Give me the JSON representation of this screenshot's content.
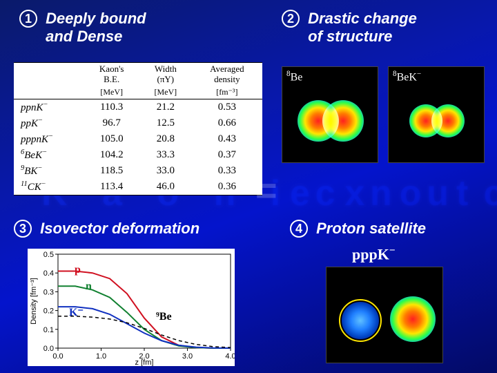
{
  "headings": {
    "h1": {
      "num": "1",
      "line1": "Deeply bound",
      "line2": "and Dense"
    },
    "h2": {
      "num": "2",
      "line1": "Drastic change",
      "line2": "of structure"
    },
    "h3": {
      "num": "3",
      "line1": "Isovector deformation"
    },
    "h4": {
      "num": "4",
      "line1": "Proton satellite"
    }
  },
  "table": {
    "headers": {
      "c1_l1": "Kaon's",
      "c1_l2": "B.E.",
      "c1_unit": "[MeV]",
      "c2_l1": "Width",
      "c2_l2": "(πY)",
      "c2_unit": "[MeV]",
      "c3_l1": "Averaged",
      "c3_l2": "density",
      "c3_unit": "[fm⁻³]"
    },
    "rows": [
      {
        "label": "ppnK⁻",
        "be": "110.3",
        "w": "21.2",
        "d": "0.53"
      },
      {
        "label": "ppK⁻",
        "be": "96.7",
        "w": "12.5",
        "d": "0.66"
      },
      {
        "label": "pppnK⁻",
        "be": "105.0",
        "w": "20.8",
        "d": "0.43"
      },
      {
        "label": "⁶BeK⁻",
        "be": "104.2",
        "w": "33.3",
        "d": "0.37"
      },
      {
        "label": "⁹BK⁻",
        "be": "118.5",
        "w": "33.0",
        "d": "0.33"
      },
      {
        "label": "¹¹CK⁻",
        "be": "113.4",
        "w": "46.0",
        "d": "0.36"
      }
    ]
  },
  "panels": {
    "be8": {
      "label_pre": "8",
      "label": "Be"
    },
    "be8k": {
      "label_pre": "8",
      "label": "BeK",
      "label_sup": "−"
    },
    "pppk": {
      "label": "pppK",
      "label_sup": "−"
    }
  },
  "chart": {
    "xlim": [
      0.0,
      4.0
    ],
    "xticks": [
      "0.0",
      "1.0",
      "2.0",
      "3.0",
      "4.0"
    ],
    "ylim": [
      0.0,
      0.5
    ],
    "yticks": [
      "0.0",
      "0.1",
      "0.2",
      "0.3",
      "0.4",
      "0.5"
    ],
    "xlabel": "z [fm]",
    "ylabel": "Density [fm⁻³]",
    "series": {
      "p": {
        "color": "#d01020",
        "label": "p",
        "pts": [
          [
            0.0,
            0.41
          ],
          [
            0.4,
            0.41
          ],
          [
            0.8,
            0.4
          ],
          [
            1.2,
            0.37
          ],
          [
            1.6,
            0.29
          ],
          [
            2.0,
            0.16
          ],
          [
            2.4,
            0.06
          ],
          [
            2.8,
            0.015
          ],
          [
            3.2,
            0.003
          ],
          [
            3.6,
            0.0
          ],
          [
            4.0,
            0.0
          ]
        ]
      },
      "n": {
        "color": "#108030",
        "label": "n",
        "pts": [
          [
            0.0,
            0.33
          ],
          [
            0.4,
            0.33
          ],
          [
            0.8,
            0.31
          ],
          [
            1.2,
            0.27
          ],
          [
            1.6,
            0.19
          ],
          [
            2.0,
            0.1
          ],
          [
            2.4,
            0.04
          ],
          [
            2.8,
            0.012
          ],
          [
            3.2,
            0.003
          ],
          [
            3.6,
            0.0
          ],
          [
            4.0,
            0.0
          ]
        ]
      },
      "K": {
        "color": "#1030c0",
        "label": "K⁻",
        "pts": [
          [
            0.0,
            0.22
          ],
          [
            0.4,
            0.22
          ],
          [
            0.8,
            0.21
          ],
          [
            1.2,
            0.18
          ],
          [
            1.6,
            0.13
          ],
          [
            2.0,
            0.08
          ],
          [
            2.4,
            0.04
          ],
          [
            2.8,
            0.015
          ],
          [
            3.2,
            0.005
          ],
          [
            3.6,
            0.001
          ],
          [
            4.0,
            0.0
          ]
        ]
      },
      "ref": {
        "color": "#000000",
        "label": "⁹Be",
        "pts": [
          [
            0.0,
            0.17
          ],
          [
            0.4,
            0.17
          ],
          [
            0.8,
            0.165
          ],
          [
            1.2,
            0.155
          ],
          [
            1.6,
            0.135
          ],
          [
            2.0,
            0.105
          ],
          [
            2.4,
            0.07
          ],
          [
            2.8,
            0.04
          ],
          [
            3.2,
            0.02
          ],
          [
            3.6,
            0.008
          ],
          [
            4.0,
            0.003
          ]
        ]
      }
    },
    "ann": {
      "p": "p",
      "n": "n",
      "K": "K⁻",
      "ref": "⁹Be"
    }
  },
  "overlay": {
    "left": "K a o n i c  n u c l e i",
    "mid": "=",
    "right": "e x o t i c  s y"
  },
  "colors": {
    "bg_grad_a": "#0a1a6a",
    "bg_grad_b": "#0414cc",
    "text": "#ffffff"
  }
}
